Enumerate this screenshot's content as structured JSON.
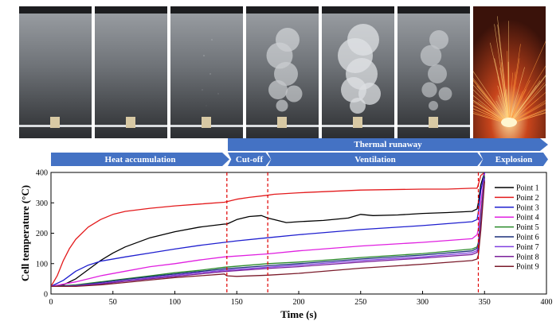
{
  "stage_labels": {
    "thermal_runaway": "Thermal runaway",
    "heat_accumulation": "Heat accumulation",
    "cut_off": "Cut-off",
    "ventilation": "Ventilation",
    "explosion": "Explosion"
  },
  "colors": {
    "stage_arrow": "#4472c4",
    "marker_line": "#e00000"
  },
  "photos": [
    {
      "smoke": 0
    },
    {
      "smoke": 0
    },
    {
      "smoke": 0.05
    },
    {
      "smoke": 0.75
    },
    {
      "smoke": 1
    },
    {
      "smoke": 0.6
    },
    {
      "smoke": 0,
      "sparks": true
    }
  ],
  "chart_data": {
    "type": "line",
    "title": "",
    "xlabel": "Time (s)",
    "ylabel": "Cell temperature (°C)",
    "xlim": [
      0,
      400
    ],
    "ylim": [
      0,
      400
    ],
    "xticks": [
      0,
      50,
      100,
      150,
      200,
      250,
      300,
      350,
      400
    ],
    "yticks": [
      0,
      100,
      200,
      300,
      400
    ],
    "grid": false,
    "legend": "right",
    "vlines": [
      142,
      175,
      345
    ],
    "series": [
      {
        "name": "Point 1",
        "color": "#000000",
        "x": [
          0,
          10,
          20,
          30,
          40,
          50,
          60,
          80,
          100,
          120,
          140,
          142,
          150,
          160,
          170,
          175,
          180,
          190,
          200,
          220,
          240,
          250,
          260,
          280,
          300,
          320,
          340,
          344,
          345,
          347,
          350
        ],
        "y": [
          25,
          30,
          50,
          80,
          110,
          135,
          155,
          185,
          205,
          220,
          230,
          230,
          245,
          255,
          258,
          250,
          245,
          235,
          238,
          242,
          250,
          262,
          258,
          260,
          265,
          268,
          272,
          280,
          300,
          360,
          400
        ]
      },
      {
        "name": "Point 2",
        "color": "#e31a1c",
        "x": [
          0,
          5,
          10,
          15,
          20,
          30,
          40,
          50,
          60,
          80,
          100,
          120,
          140,
          150,
          160,
          175,
          180,
          200,
          250,
          300,
          320,
          340,
          344,
          345,
          347,
          350
        ],
        "y": [
          25,
          60,
          110,
          150,
          180,
          220,
          245,
          262,
          272,
          282,
          290,
          296,
          302,
          312,
          318,
          325,
          328,
          333,
          342,
          345,
          345,
          348,
          348,
          360,
          390,
          400
        ]
      },
      {
        "name": "Point 3",
        "color": "#1f1fcf",
        "x": [
          0,
          10,
          20,
          30,
          40,
          60,
          80,
          100,
          120,
          140,
          150,
          175,
          200,
          250,
          300,
          340,
          344,
          345,
          347,
          350
        ],
        "y": [
          25,
          45,
          75,
          95,
          108,
          122,
          135,
          148,
          160,
          170,
          175,
          185,
          195,
          212,
          225,
          238,
          245,
          270,
          340,
          400
        ]
      },
      {
        "name": "Point 4",
        "color": "#e020e0",
        "x": [
          0,
          20,
          40,
          60,
          80,
          100,
          120,
          140,
          175,
          200,
          250,
          300,
          340,
          344,
          345,
          347,
          350
        ],
        "y": [
          25,
          40,
          60,
          75,
          90,
          100,
          112,
          122,
          132,
          142,
          158,
          170,
          182,
          195,
          215,
          300,
          395
        ]
      },
      {
        "name": "Point 5",
        "color": "#2a8a2a",
        "x": [
          0,
          20,
          40,
          60,
          80,
          100,
          120,
          140,
          175,
          200,
          250,
          300,
          340,
          344,
          345,
          347,
          350
        ],
        "y": [
          25,
          30,
          40,
          50,
          60,
          70,
          78,
          88,
          100,
          105,
          120,
          133,
          148,
          155,
          170,
          260,
          390
        ]
      },
      {
        "name": "Point 6",
        "color": "#1a2e7a",
        "x": [
          0,
          20,
          40,
          60,
          80,
          100,
          120,
          140,
          175,
          200,
          250,
          300,
          340,
          344,
          345,
          347,
          350
        ],
        "y": [
          25,
          28,
          38,
          48,
          57,
          66,
          74,
          83,
          93,
          100,
          115,
          128,
          142,
          150,
          165,
          250,
          385
        ]
      },
      {
        "name": "Point 7",
        "color": "#8040e0",
        "x": [
          0,
          20,
          40,
          60,
          80,
          100,
          120,
          140,
          175,
          200,
          250,
          300,
          340,
          344,
          345,
          347,
          350
        ],
        "y": [
          25,
          27,
          35,
          44,
          53,
          62,
          70,
          78,
          88,
          95,
          110,
          122,
          136,
          143,
          158,
          240,
          380
        ]
      },
      {
        "name": "Point 8",
        "color": "#7a1f9a",
        "x": [
          0,
          20,
          40,
          60,
          80,
          100,
          120,
          140,
          175,
          200,
          250,
          300,
          340,
          344,
          345,
          347,
          350
        ],
        "y": [
          25,
          26,
          33,
          42,
          50,
          58,
          66,
          74,
          84,
          90,
          105,
          118,
          130,
          137,
          150,
          230,
          375
        ]
      },
      {
        "name": "Point 9",
        "color": "#7a1a2a",
        "x": [
          0,
          20,
          40,
          60,
          80,
          100,
          120,
          140,
          142,
          150,
          175,
          200,
          250,
          300,
          340,
          344,
          345,
          347,
          350
        ],
        "y": [
          25,
          25,
          30,
          38,
          46,
          54,
          60,
          66,
          60,
          58,
          62,
          68,
          85,
          98,
          110,
          115,
          128,
          210,
          370
        ]
      }
    ]
  }
}
